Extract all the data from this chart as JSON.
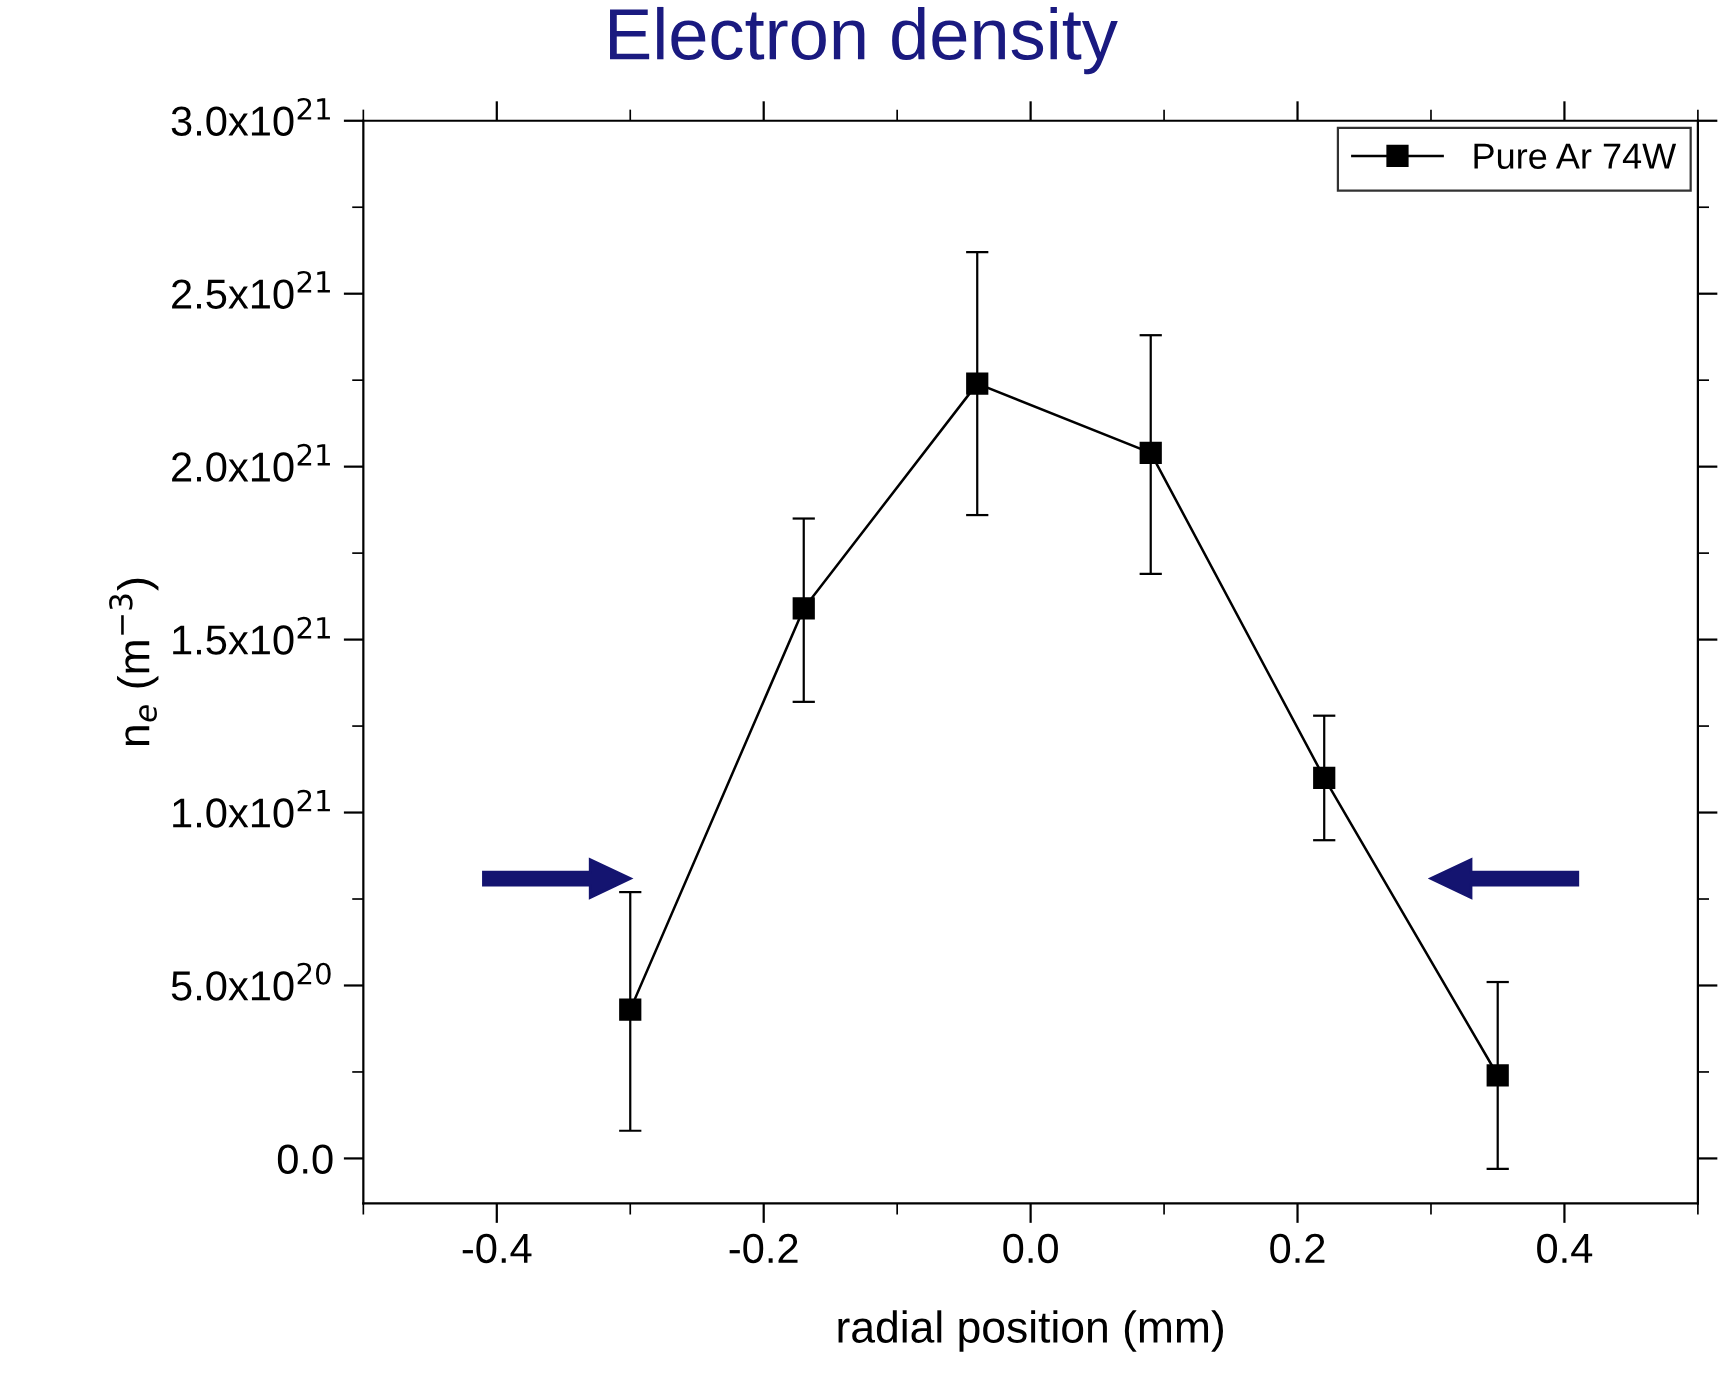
{
  "chart_data": {
    "type": "line",
    "title": "Electron density",
    "xlabel": "radial position (mm)",
    "ylabel": "n$_{e}$ (m$^{−3}$)",
    "x": [
      -0.3,
      -0.17,
      -0.04,
      0.09,
      0.22,
      0.35
    ],
    "series": [
      {
        "name": "Pure Ar 74W",
        "color": "#000000",
        "values": [
          4.3e+20,
          1.59e+21,
          2.24e+21,
          2.04e+21,
          1.1e+21,
          2.4e+20
        ],
        "errors": [
          [
            8e+19,
            7.7e+20
          ],
          [
            1.32e+21,
            1.85e+21
          ],
          [
            1.86e+21,
            2.62e+21
          ],
          [
            1.69e+21,
            2.38e+21
          ],
          [
            9.2e+20,
            1.28e+21
          ],
          [
            -3e+19,
            5.1e+20
          ]
        ]
      }
    ],
    "xlim": [
      -0.5,
      0.5
    ],
    "xticks": [
      -0.4,
      -0.2,
      {
        "value": 0,
        "label": "0.0"
      },
      0.2,
      0.4
    ],
    "ylim": [
      -1.3e+20,
      3e+21
    ],
    "yticks": [
      {
        "value": 0,
        "label": "0.0"
      },
      {
        "value": 5e+20,
        "label": "5.0x10$^{20}$"
      },
      {
        "value": 1e+21,
        "label": "1.0x10$^{21}$"
      },
      {
        "value": 1.5e+21,
        "label": "1.5x10$^{21}$"
      },
      {
        "value": 2e+21,
        "label": "2.0x10$^{21}$"
      },
      {
        "value": 2.5e+21,
        "label": "2.5x10$^{21}$"
      },
      {
        "value": 3e+21,
        "label": "3.0x10$^{21}$"
      }
    ],
    "marker": "square",
    "line_style": "solid",
    "legend": "top right",
    "grid": false
  }
}
